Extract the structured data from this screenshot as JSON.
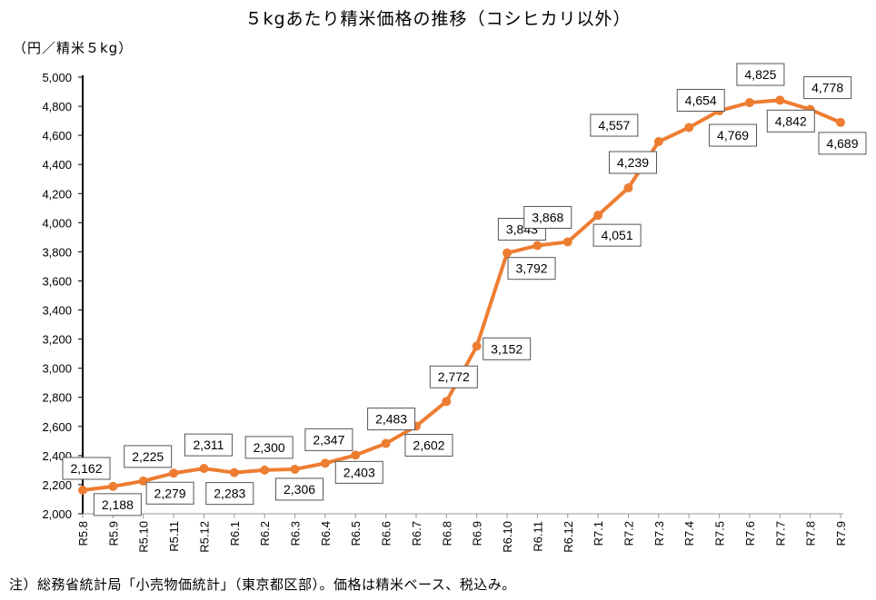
{
  "chart_data": {
    "type": "line",
    "title": "５kgあたり精米価格の推移（コシヒカリ以外）",
    "ylabel": "（円／精米５kg）",
    "note": "注）総務省統計局「小売物価統計」（東京都区部）。価格は精米ベース、税込み。",
    "ylim": [
      2000,
      5000
    ],
    "ytick_step": 200,
    "grid": false,
    "categories": [
      "R5.8",
      "R5.9",
      "R5.10",
      "R5.11",
      "R5.12",
      "R6.1",
      "R6.2",
      "R6.3",
      "R6.4",
      "R6.5",
      "R6.6",
      "R6.7",
      "R6.8",
      "R6.9",
      "R6.10",
      "R6.11",
      "R6.12",
      "R7.1",
      "R7.2",
      "R7.3",
      "R7.4",
      "R7.5",
      "R7.6",
      "R7.7",
      "R7.8",
      "R7.9"
    ],
    "values": [
      2162,
      2188,
      2225,
      2279,
      2311,
      2283,
      2300,
      2306,
      2347,
      2403,
      2483,
      2602,
      2772,
      3152,
      3792,
      3843,
      3868,
      4051,
      4239,
      4557,
      4654,
      4769,
      4825,
      4842,
      4778,
      4689
    ],
    "value_labels": [
      "2,162",
      "2,188",
      "2,225",
      "2,279",
      "2,311",
      "2,283",
      "2,300",
      "2,306",
      "2,347",
      "2,403",
      "2,483",
      "2,602",
      "2,772",
      "3,152",
      "3,792",
      "3,843",
      "3,868",
      "4,051",
      "4,239",
      "4,557",
      "4,654",
      "4,769",
      "4,825",
      "4,842",
      "4,778",
      "4,689"
    ],
    "ytick_labels": [
      "2,000",
      "2,200",
      "2,400",
      "2,600",
      "2,800",
      "3,000",
      "3,200",
      "3,400",
      "3,600",
      "3,800",
      "4,000",
      "4,200",
      "4,400",
      "4,600",
      "4,800",
      "5,000"
    ],
    "colors": {
      "line": "#ED7D31"
    }
  }
}
